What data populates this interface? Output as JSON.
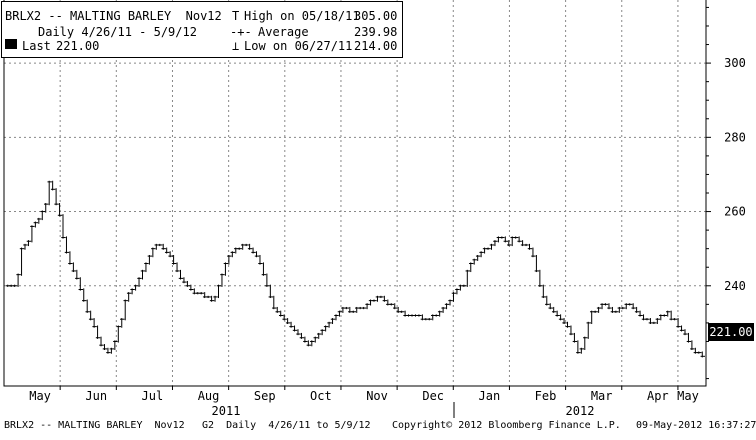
{
  "chart_data": {
    "type": "bar",
    "subtype": "ohlc-daily",
    "ticker": "BRLX2",
    "title": "BRLX2 -- MALTING BARLEY  Nov12",
    "subtitle": "Daily 4/26/11 - 5/9/12",
    "legend": {
      "high": {
        "label": "High on 05/18/11",
        "value": "305.00"
      },
      "average": {
        "label": "Average",
        "value": "239.98"
      },
      "low": {
        "label": "Low on 06/27/11",
        "value": "214.00"
      },
      "last": {
        "label": "Last",
        "value": "221.00"
      }
    },
    "legend_placement": "top-left",
    "y_axis": {
      "position": "right",
      "ticks": [
        300,
        280,
        260,
        240
      ],
      "ylim": [
        213,
        317
      ]
    },
    "x_axis": {
      "months": [
        "May",
        "Jun",
        "Jul",
        "Aug",
        "Sep",
        "Oct",
        "Nov",
        "Dec",
        "Jan",
        "Feb",
        "Mar",
        "Apr",
        "May"
      ],
      "years": [
        "2011",
        "2012"
      ]
    },
    "grid": true,
    "last_value_badge": "221.00",
    "values": [
      240,
      240,
      240,
      243,
      250,
      251,
      252,
      256,
      257,
      258,
      260,
      262,
      268,
      266,
      262,
      259,
      253,
      249,
      246,
      244,
      242,
      239,
      236,
      233,
      231,
      229,
      226,
      224,
      223,
      222,
      223,
      225,
      229,
      231,
      236,
      238,
      239,
      240,
      242,
      244,
      246,
      248,
      250,
      251,
      251,
      250,
      249,
      248,
      246,
      244,
      242,
      241,
      240,
      239,
      238,
      238,
      238,
      237,
      237,
      236,
      237,
      240,
      243,
      246,
      248,
      249,
      250,
      250,
      251,
      251,
      250,
      249,
      248,
      246,
      243,
      240,
      237,
      234,
      233,
      232,
      231,
      230,
      229,
      228,
      227,
      226,
      225,
      224,
      225,
      226,
      227,
      228,
      229,
      230,
      231,
      232,
      233,
      234,
      234,
      233,
      233,
      234,
      234,
      234,
      235,
      236,
      236,
      237,
      237,
      236,
      235,
      235,
      234,
      233,
      233,
      232,
      232,
      232,
      232,
      232,
      231,
      231,
      231,
      232,
      232,
      233,
      234,
      235,
      236,
      238,
      239,
      240,
      240,
      244,
      246,
      247,
      248,
      249,
      250,
      250,
      251,
      252,
      253,
      253,
      252,
      251,
      253,
      253,
      252,
      251,
      251,
      250,
      248,
      244,
      240,
      237,
      235,
      234,
      233,
      232,
      231,
      230,
      229,
      227,
      225,
      222,
      223,
      226,
      230,
      233,
      233,
      234,
      235,
      235,
      234,
      233,
      233,
      234,
      234,
      235,
      235,
      234,
      233,
      232,
      231,
      231,
      230,
      230,
      231,
      232,
      232,
      233,
      231,
      231,
      229,
      228,
      227,
      225,
      223,
      222,
      222,
      221
    ]
  },
  "footer": {
    "left": "BRLX2 -- MALTING BARLEY  Nov12",
    "center": "G2  Daily  4/26/11 to 5/9/12",
    "copyright": "Copyright© 2012 Bloomberg Finance L.P.",
    "timestamp": "09-May-2012 16:37:27"
  },
  "colors": {
    "background": "#ffffff",
    "line": "#000000",
    "grid": "#888888",
    "badge": "#000000"
  }
}
